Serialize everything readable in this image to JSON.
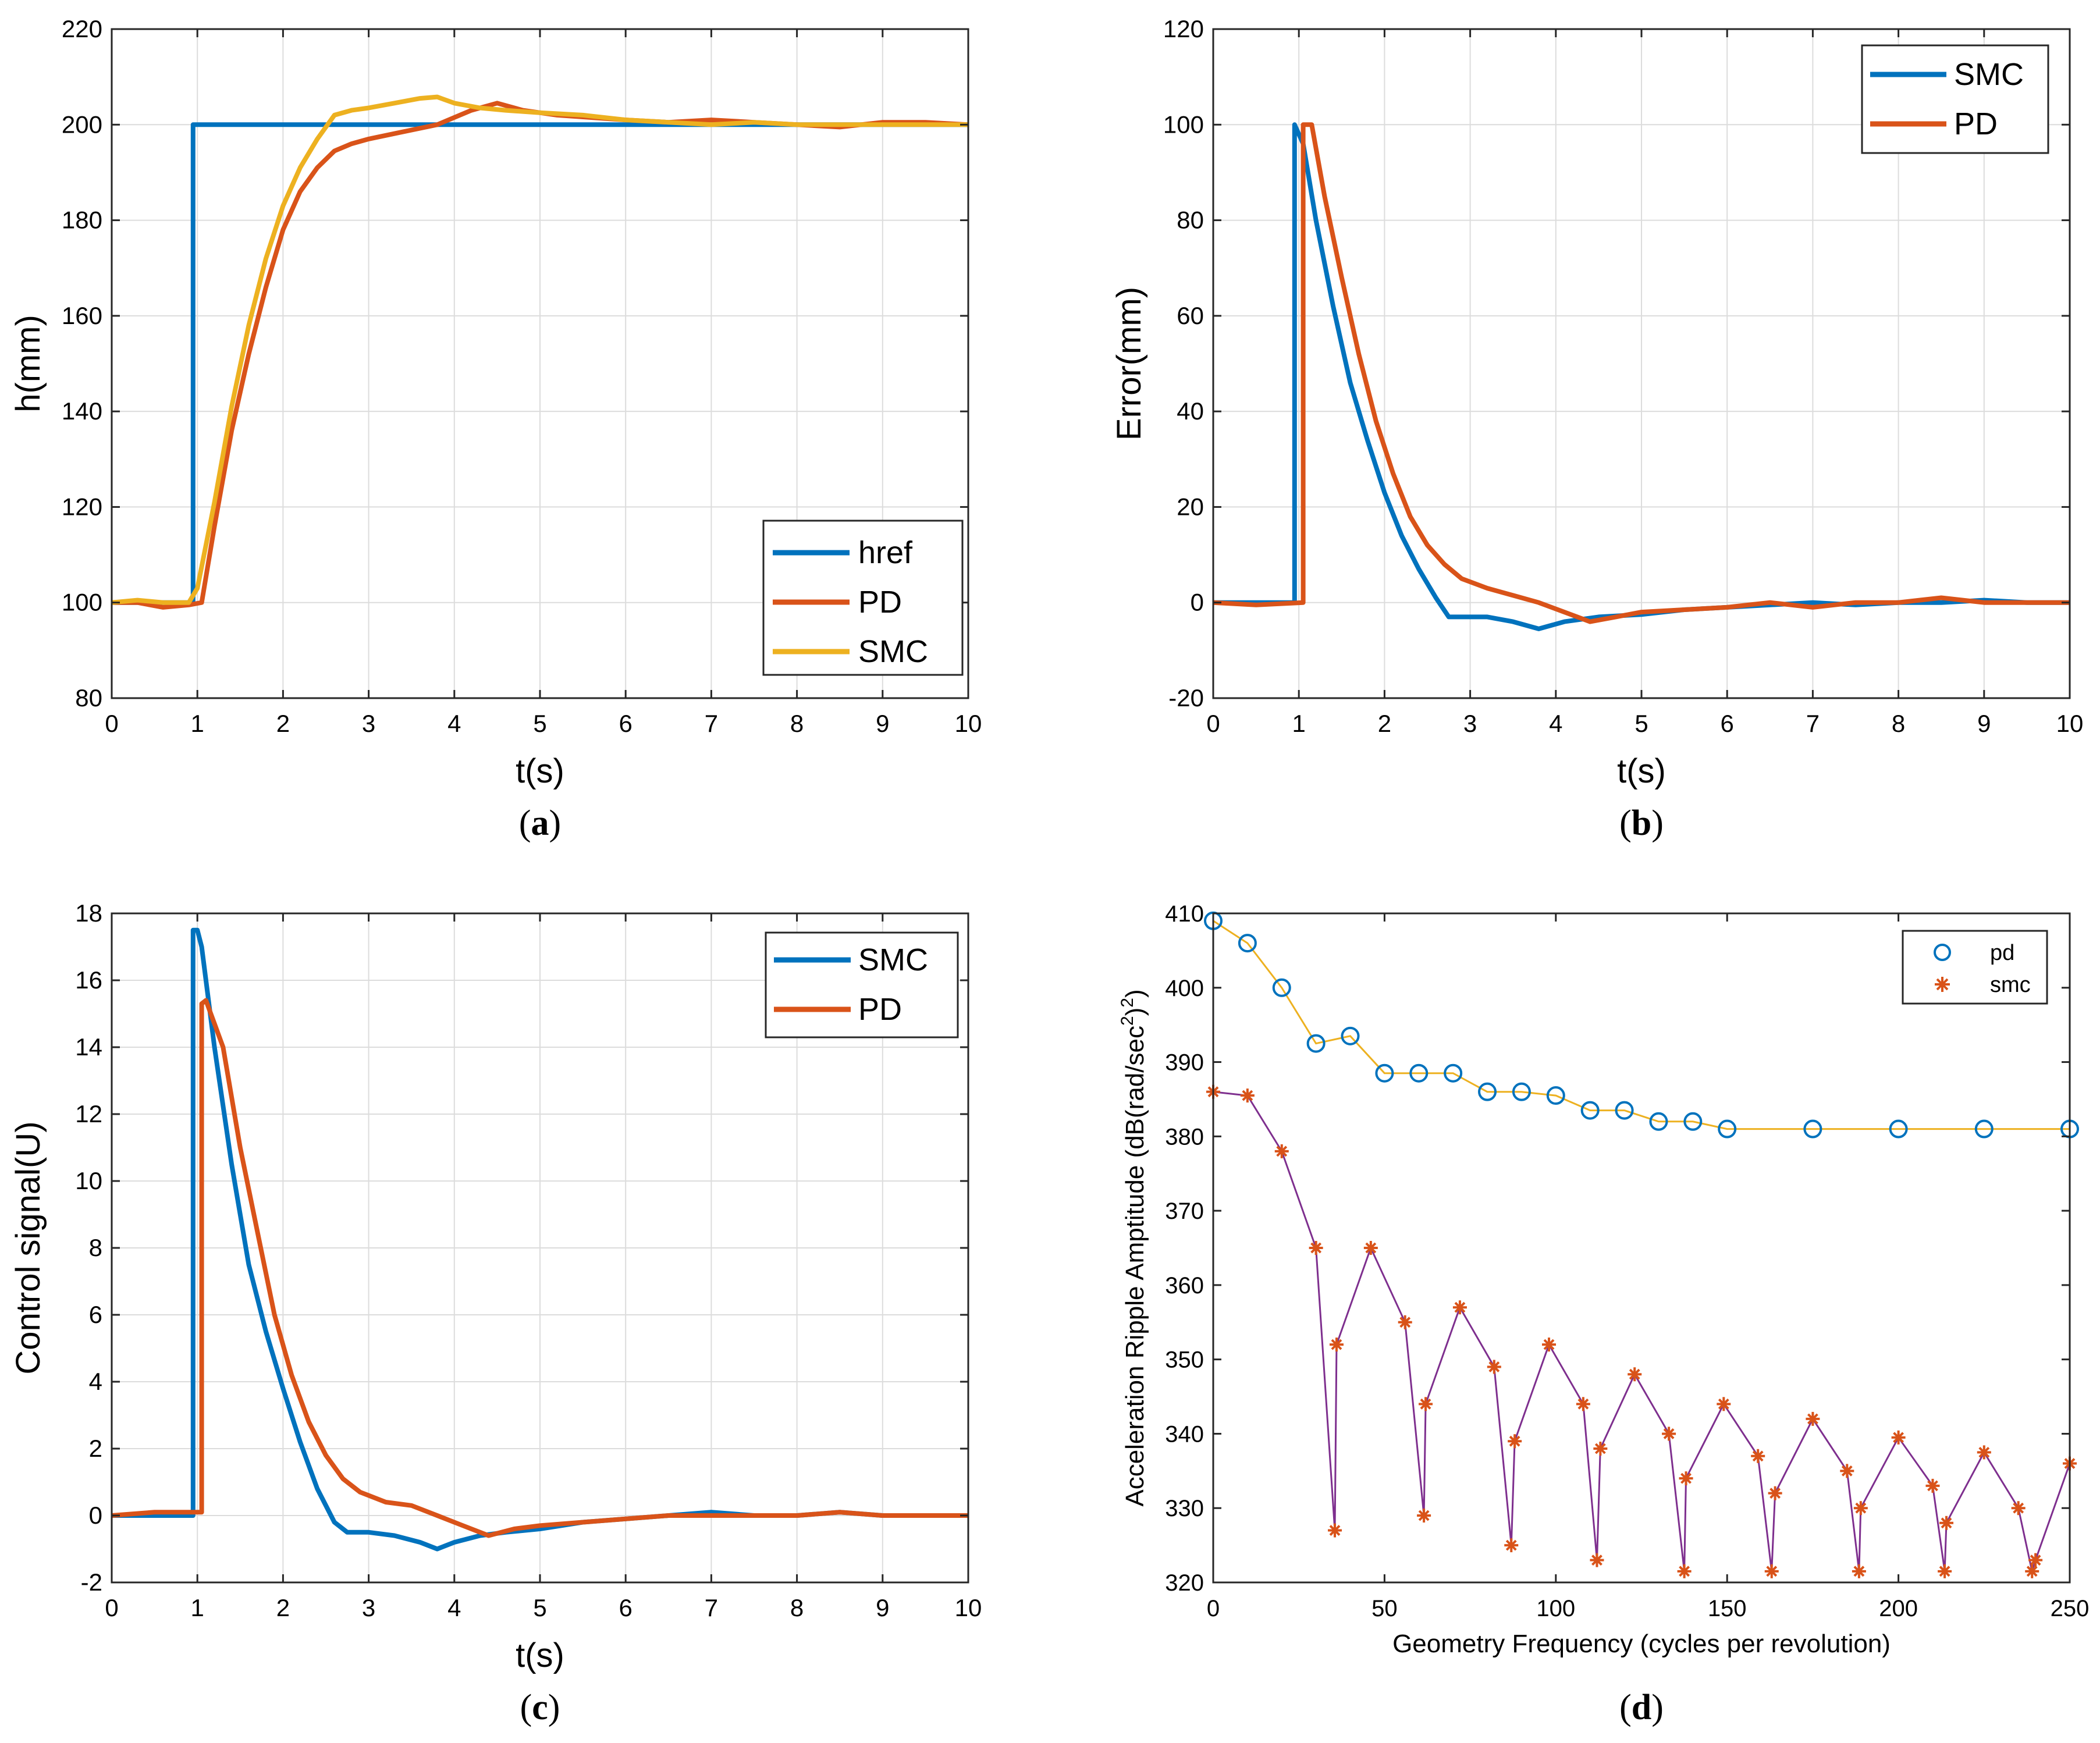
{
  "figure": {
    "captions": [
      "(a)",
      "(b)",
      "(c)",
      "(d)"
    ],
    "caption_letters": [
      "a",
      "b",
      "c",
      "d"
    ]
  },
  "chart_data": [
    {
      "id": "a",
      "type": "line",
      "xlabel": "t(s)",
      "ylabel": "h(mm)",
      "xlim": [
        0,
        10
      ],
      "ylim": [
        80,
        220
      ],
      "xticks": [
        0,
        1,
        2,
        3,
        4,
        5,
        6,
        7,
        8,
        9,
        10
      ],
      "yticks": [
        80,
        100,
        120,
        140,
        160,
        180,
        200,
        220
      ],
      "grid": true,
      "legend_position": "bottom-right",
      "series": [
        {
          "name": "href",
          "color": "#0072BD",
          "x": [
            0,
            0.95,
            0.95,
            10
          ],
          "y": [
            100,
            100,
            200,
            200
          ]
        },
        {
          "name": "PD",
          "color": "#D95319",
          "x": [
            0,
            0.3,
            0.6,
            0.9,
            1.05,
            1.2,
            1.4,
            1.6,
            1.8,
            2.0,
            2.2,
            2.4,
            2.6,
            2.8,
            3.0,
            3.4,
            3.8,
            4.2,
            4.5,
            4.8,
            5.2,
            5.6,
            6.0,
            6.5,
            7.0,
            7.5,
            8.0,
            8.5,
            9.0,
            9.5,
            10
          ],
          "y": [
            100,
            100,
            99,
            99.5,
            100,
            116,
            136,
            152,
            166,
            178,
            186,
            191,
            194.5,
            196,
            197,
            198.5,
            200,
            203,
            204.5,
            203,
            202,
            201.5,
            201,
            200.5,
            201,
            200.5,
            200,
            199.5,
            200.5,
            200.5,
            200
          ]
        },
        {
          "name": "SMC",
          "color": "#EDB120",
          "x": [
            0,
            0.3,
            0.6,
            0.9,
            1.0,
            1.2,
            1.4,
            1.6,
            1.8,
            2.0,
            2.2,
            2.4,
            2.6,
            2.8,
            3.0,
            3.3,
            3.6,
            3.8,
            4.0,
            4.3,
            4.6,
            5.0,
            5.5,
            6.0,
            6.5,
            7.0,
            7.5,
            8.0,
            8.5,
            9.0,
            9.5,
            10
          ],
          "y": [
            100,
            100.5,
            100,
            100,
            103,
            121,
            141,
            158,
            172,
            183,
            191,
            197,
            202,
            203,
            203.5,
            204.5,
            205.5,
            205.8,
            204.5,
            203.5,
            203,
            202.5,
            202,
            201,
            200.5,
            200,
            200.5,
            200,
            200,
            200,
            200,
            200
          ]
        }
      ],
      "legend": [
        "href",
        "PD",
        "SMC"
      ]
    },
    {
      "id": "b",
      "type": "line",
      "xlabel": "t(s)",
      "ylabel": "Error(mm)",
      "xlim": [
        0,
        10
      ],
      "ylim": [
        -20,
        120
      ],
      "xticks": [
        0,
        1,
        2,
        3,
        4,
        5,
        6,
        7,
        8,
        9,
        10
      ],
      "yticks": [
        -20,
        0,
        20,
        40,
        60,
        80,
        100,
        120
      ],
      "grid": true,
      "legend_position": "top-right",
      "series": [
        {
          "name": "SMC",
          "color": "#0072BD",
          "x": [
            0,
            0.4,
            0.95,
            0.95,
            1.05,
            1.2,
            1.4,
            1.6,
            1.8,
            2.0,
            2.2,
            2.4,
            2.6,
            2.75,
            2.9,
            3.2,
            3.5,
            3.8,
            4.1,
            4.5,
            5.0,
            5.5,
            6.0,
            6.5,
            7.0,
            7.5,
            8.0,
            8.5,
            9.0,
            9.5,
            10
          ],
          "y": [
            0,
            0,
            0,
            100,
            96,
            80,
            62,
            46,
            34,
            23,
            14,
            7,
            1,
            -3,
            -3,
            -3,
            -4,
            -5.5,
            -4,
            -3,
            -2.5,
            -1.5,
            -1,
            -0.5,
            0,
            -0.5,
            0,
            0,
            0.5,
            0,
            0
          ]
        },
        {
          "name": "PD",
          "color": "#D95319",
          "x": [
            0,
            0.5,
            1.05,
            1.05,
            1.15,
            1.3,
            1.5,
            1.7,
            1.9,
            2.1,
            2.3,
            2.5,
            2.7,
            2.9,
            3.2,
            3.5,
            3.8,
            4.1,
            4.4,
            4.7,
            5.0,
            5.5,
            6.0,
            6.5,
            7.0,
            7.5,
            8.0,
            8.5,
            9.0,
            9.5,
            10
          ],
          "y": [
            0,
            -0.5,
            0,
            100,
            100,
            85,
            68,
            52,
            38,
            27,
            18,
            12,
            8,
            5,
            3,
            1.5,
            0,
            -2,
            -4,
            -3,
            -2,
            -1.5,
            -1,
            0,
            -1,
            0,
            0,
            1,
            0,
            0,
            0
          ]
        }
      ],
      "legend": [
        "SMC",
        "PD"
      ]
    },
    {
      "id": "c",
      "type": "line",
      "xlabel": "t(s)",
      "ylabel": "Control signal(U)",
      "xlim": [
        0,
        10
      ],
      "ylim": [
        -2,
        18
      ],
      "xticks": [
        0,
        1,
        2,
        3,
        4,
        5,
        6,
        7,
        8,
        9,
        10
      ],
      "yticks": [
        -2,
        0,
        2,
        4,
        6,
        8,
        10,
        12,
        14,
        16,
        18
      ],
      "grid": true,
      "legend_position": "top-right",
      "series": [
        {
          "name": "SMC",
          "color": "#0072BD",
          "x": [
            0,
            0.5,
            0.95,
            0.95,
            1.0,
            1.05,
            1.2,
            1.4,
            1.6,
            1.8,
            2.0,
            2.2,
            2.4,
            2.6,
            2.75,
            3.0,
            3.3,
            3.6,
            3.8,
            4.0,
            4.3,
            4.6,
            5.0,
            5.5,
            6.0,
            6.5,
            7.0,
            7.5,
            8.0,
            8.5,
            9.0,
            9.5,
            10
          ],
          "y": [
            0,
            0,
            0,
            17.5,
            17.5,
            17,
            14,
            10.5,
            7.5,
            5.5,
            3.8,
            2.2,
            0.8,
            -0.2,
            -0.5,
            -0.5,
            -0.6,
            -0.8,
            -1.0,
            -0.8,
            -0.6,
            -0.5,
            -0.4,
            -0.2,
            -0.1,
            0,
            0.1,
            0,
            0,
            0.1,
            0,
            0,
            0
          ]
        },
        {
          "name": "PD",
          "color": "#D95319",
          "x": [
            0,
            0.5,
            1.05,
            1.05,
            1.1,
            1.3,
            1.5,
            1.7,
            1.9,
            2.1,
            2.3,
            2.5,
            2.7,
            2.9,
            3.2,
            3.5,
            3.8,
            4.1,
            4.4,
            4.7,
            5.0,
            5.5,
            6.0,
            6.5,
            7.0,
            7.5,
            8.0,
            8.5,
            9.0,
            9.5,
            10
          ],
          "y": [
            0,
            0.1,
            0.1,
            15.3,
            15.4,
            14,
            11,
            8.5,
            6,
            4.2,
            2.8,
            1.8,
            1.1,
            0.7,
            0.4,
            0.3,
            0,
            -0.3,
            -0.6,
            -0.4,
            -0.3,
            -0.2,
            -0.1,
            0,
            0,
            0,
            0,
            0.1,
            0,
            0,
            0
          ]
        }
      ],
      "legend": [
        "SMC",
        "PD"
      ]
    },
    {
      "id": "d",
      "type": "scatter",
      "xlabel": "Geometry Frequency (cycles per revolution)",
      "ylabel": "Acceleration Ripple Amptitude (dB(rad/sec^2)^2)",
      "ylabel_parts": [
        "Acceleration Ripple Amptitude (dB(rad/sec",
        "2",
        ")",
        "2",
        ")"
      ],
      "xlim": [
        0,
        250
      ],
      "ylim": [
        320,
        410
      ],
      "xticks": [
        0,
        50,
        100,
        150,
        200,
        250
      ],
      "yticks": [
        320,
        330,
        340,
        350,
        360,
        370,
        380,
        390,
        400,
        410
      ],
      "grid": false,
      "legend_position": "top-right",
      "series": [
        {
          "name": "pd",
          "marker": "circle",
          "color": "#0072BD",
          "line_color": "#EDB120",
          "x": [
            0,
            10,
            20,
            30,
            40,
            50,
            60,
            70,
            80,
            90,
            100,
            110,
            120,
            130,
            140,
            150,
            175,
            200,
            225,
            250
          ],
          "y": [
            409,
            406,
            400,
            392.5,
            393.5,
            388.5,
            388.5,
            388.5,
            386,
            386,
            385.5,
            383.5,
            383.5,
            382,
            382,
            381,
            381,
            381,
            381,
            381
          ]
        },
        {
          "name": "smc",
          "marker": "asterisk",
          "color": "#D95319",
          "line_color": "#7E2F8E",
          "x": [
            0,
            10,
            20,
            30,
            35.5,
            36,
            46,
            56,
            61.5,
            62,
            72,
            82,
            87,
            88,
            98,
            108,
            112,
            113,
            123,
            133,
            137.5,
            138,
            149,
            159,
            163,
            164,
            175,
            185,
            188.5,
            189,
            200,
            210,
            213.5,
            214,
            225,
            235,
            239,
            240,
            250
          ],
          "y": [
            386,
            385.5,
            378,
            365,
            327,
            352,
            365,
            355,
            329,
            344,
            357,
            349,
            325,
            339,
            352,
            344,
            323,
            338,
            348,
            340,
            321.5,
            334,
            344,
            337,
            321.5,
            332,
            342,
            335,
            321.5,
            330,
            339.5,
            333,
            321.5,
            328,
            337.5,
            330,
            321.5,
            323,
            336
          ]
        }
      ],
      "legend": [
        "pd",
        "smc"
      ]
    }
  ]
}
